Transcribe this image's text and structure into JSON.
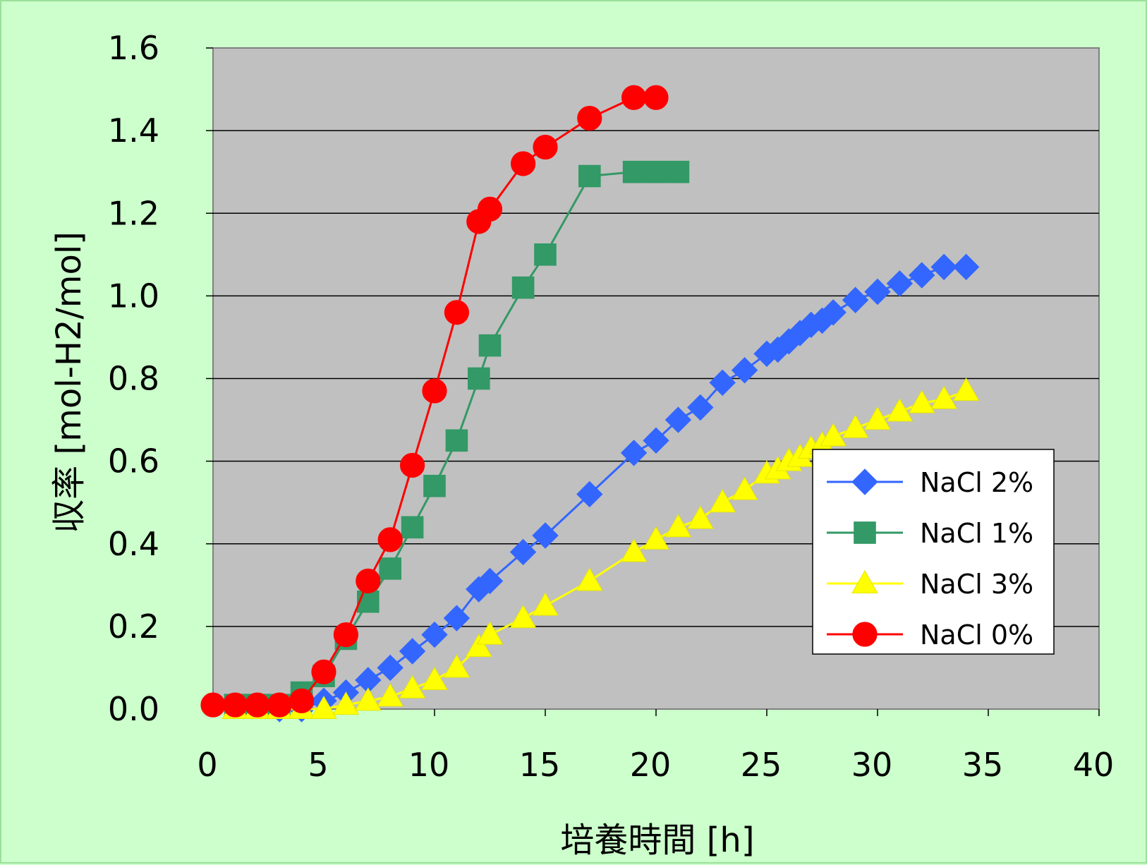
{
  "chart_data": {
    "type": "line",
    "xlabel": "培養時間 [h]",
    "ylabel": "収率 [mol-H2/mol]",
    "xlim": [
      0,
      40
    ],
    "ylim": [
      0,
      1.6
    ],
    "xticks": [
      "0",
      "5",
      "10",
      "15",
      "20",
      "25",
      "30",
      "35",
      "40"
    ],
    "yticks": [
      "0.0",
      "0.2",
      "0.4",
      "0.6",
      "0.8",
      "1.0",
      "1.2",
      "1.4",
      "1.6"
    ],
    "grid": "horizontal",
    "legend_position": "right",
    "plot_background": "#c0c0c0",
    "series": [
      {
        "name": "NaCl 2%",
        "color": "#3366ff",
        "marker": "diamond",
        "x": [
          3.0,
          4.0,
          5.0,
          6.0,
          7.0,
          8.0,
          9.0,
          10.0,
          11.0,
          12.0,
          12.5,
          14.0,
          15.0,
          17.0,
          19.0,
          20.0,
          21.0,
          22.0,
          23.0,
          24.0,
          25.0,
          25.5,
          26.0,
          26.5,
          27.0,
          27.5,
          28.0,
          29.0,
          30.0,
          31.0,
          32.0,
          33.0,
          34.0
        ],
        "y": [
          0.0,
          0.0,
          0.02,
          0.04,
          0.07,
          0.1,
          0.14,
          0.18,
          0.22,
          0.29,
          0.31,
          0.38,
          0.42,
          0.52,
          0.62,
          0.65,
          0.7,
          0.73,
          0.79,
          0.82,
          0.86,
          0.87,
          0.89,
          0.91,
          0.93,
          0.94,
          0.96,
          0.99,
          1.01,
          1.03,
          1.05,
          1.07,
          1.07
        ]
      },
      {
        "name": "NaCl 1%",
        "color": "#339966",
        "marker": "square",
        "x": [
          1.0,
          2.0,
          3.0,
          4.0,
          5.0,
          6.0,
          7.0,
          8.0,
          9.0,
          10.0,
          11.0,
          12.0,
          12.5,
          14.0,
          15.0,
          17.0,
          19.0,
          20.0,
          21.0
        ],
        "y": [
          0.01,
          0.01,
          0.01,
          0.04,
          0.08,
          0.17,
          0.26,
          0.34,
          0.44,
          0.54,
          0.65,
          0.8,
          0.88,
          1.02,
          1.1,
          1.29,
          1.3,
          1.3,
          1.3
        ]
      },
      {
        "name": "NaCl 3%",
        "color": "#ffff00",
        "marker": "triangle",
        "x": [
          1.0,
          2.0,
          3.0,
          4.0,
          5.0,
          6.0,
          7.0,
          8.0,
          9.0,
          10.0,
          11.0,
          12.0,
          12.5,
          14.0,
          15.0,
          17.0,
          19.0,
          20.0,
          21.0,
          22.0,
          23.0,
          24.0,
          25.0,
          25.5,
          26.0,
          26.5,
          27.0,
          27.5,
          28.0,
          29.0,
          30.0,
          31.0,
          32.0,
          33.0,
          34.0
        ],
        "y": [
          0.0,
          0.0,
          0.0,
          0.0,
          0.0,
          0.01,
          0.02,
          0.03,
          0.05,
          0.07,
          0.1,
          0.15,
          0.18,
          0.22,
          0.25,
          0.31,
          0.38,
          0.41,
          0.44,
          0.46,
          0.5,
          0.53,
          0.57,
          0.58,
          0.6,
          0.61,
          0.63,
          0.64,
          0.66,
          0.68,
          0.7,
          0.72,
          0.74,
          0.75,
          0.77
        ]
      },
      {
        "name": "NaCl 0%",
        "color": "#ff0000",
        "marker": "circle",
        "x": [
          0.0,
          1.0,
          2.0,
          3.0,
          4.0,
          5.0,
          6.0,
          7.0,
          8.0,
          9.0,
          10.0,
          11.0,
          12.0,
          12.5,
          14.0,
          15.0,
          17.0,
          19.0,
          20.0
        ],
        "y": [
          0.01,
          0.01,
          0.01,
          0.01,
          0.02,
          0.09,
          0.18,
          0.31,
          0.41,
          0.59,
          0.77,
          0.96,
          1.18,
          1.21,
          1.32,
          1.36,
          1.43,
          1.48,
          1.48
        ]
      }
    ]
  }
}
